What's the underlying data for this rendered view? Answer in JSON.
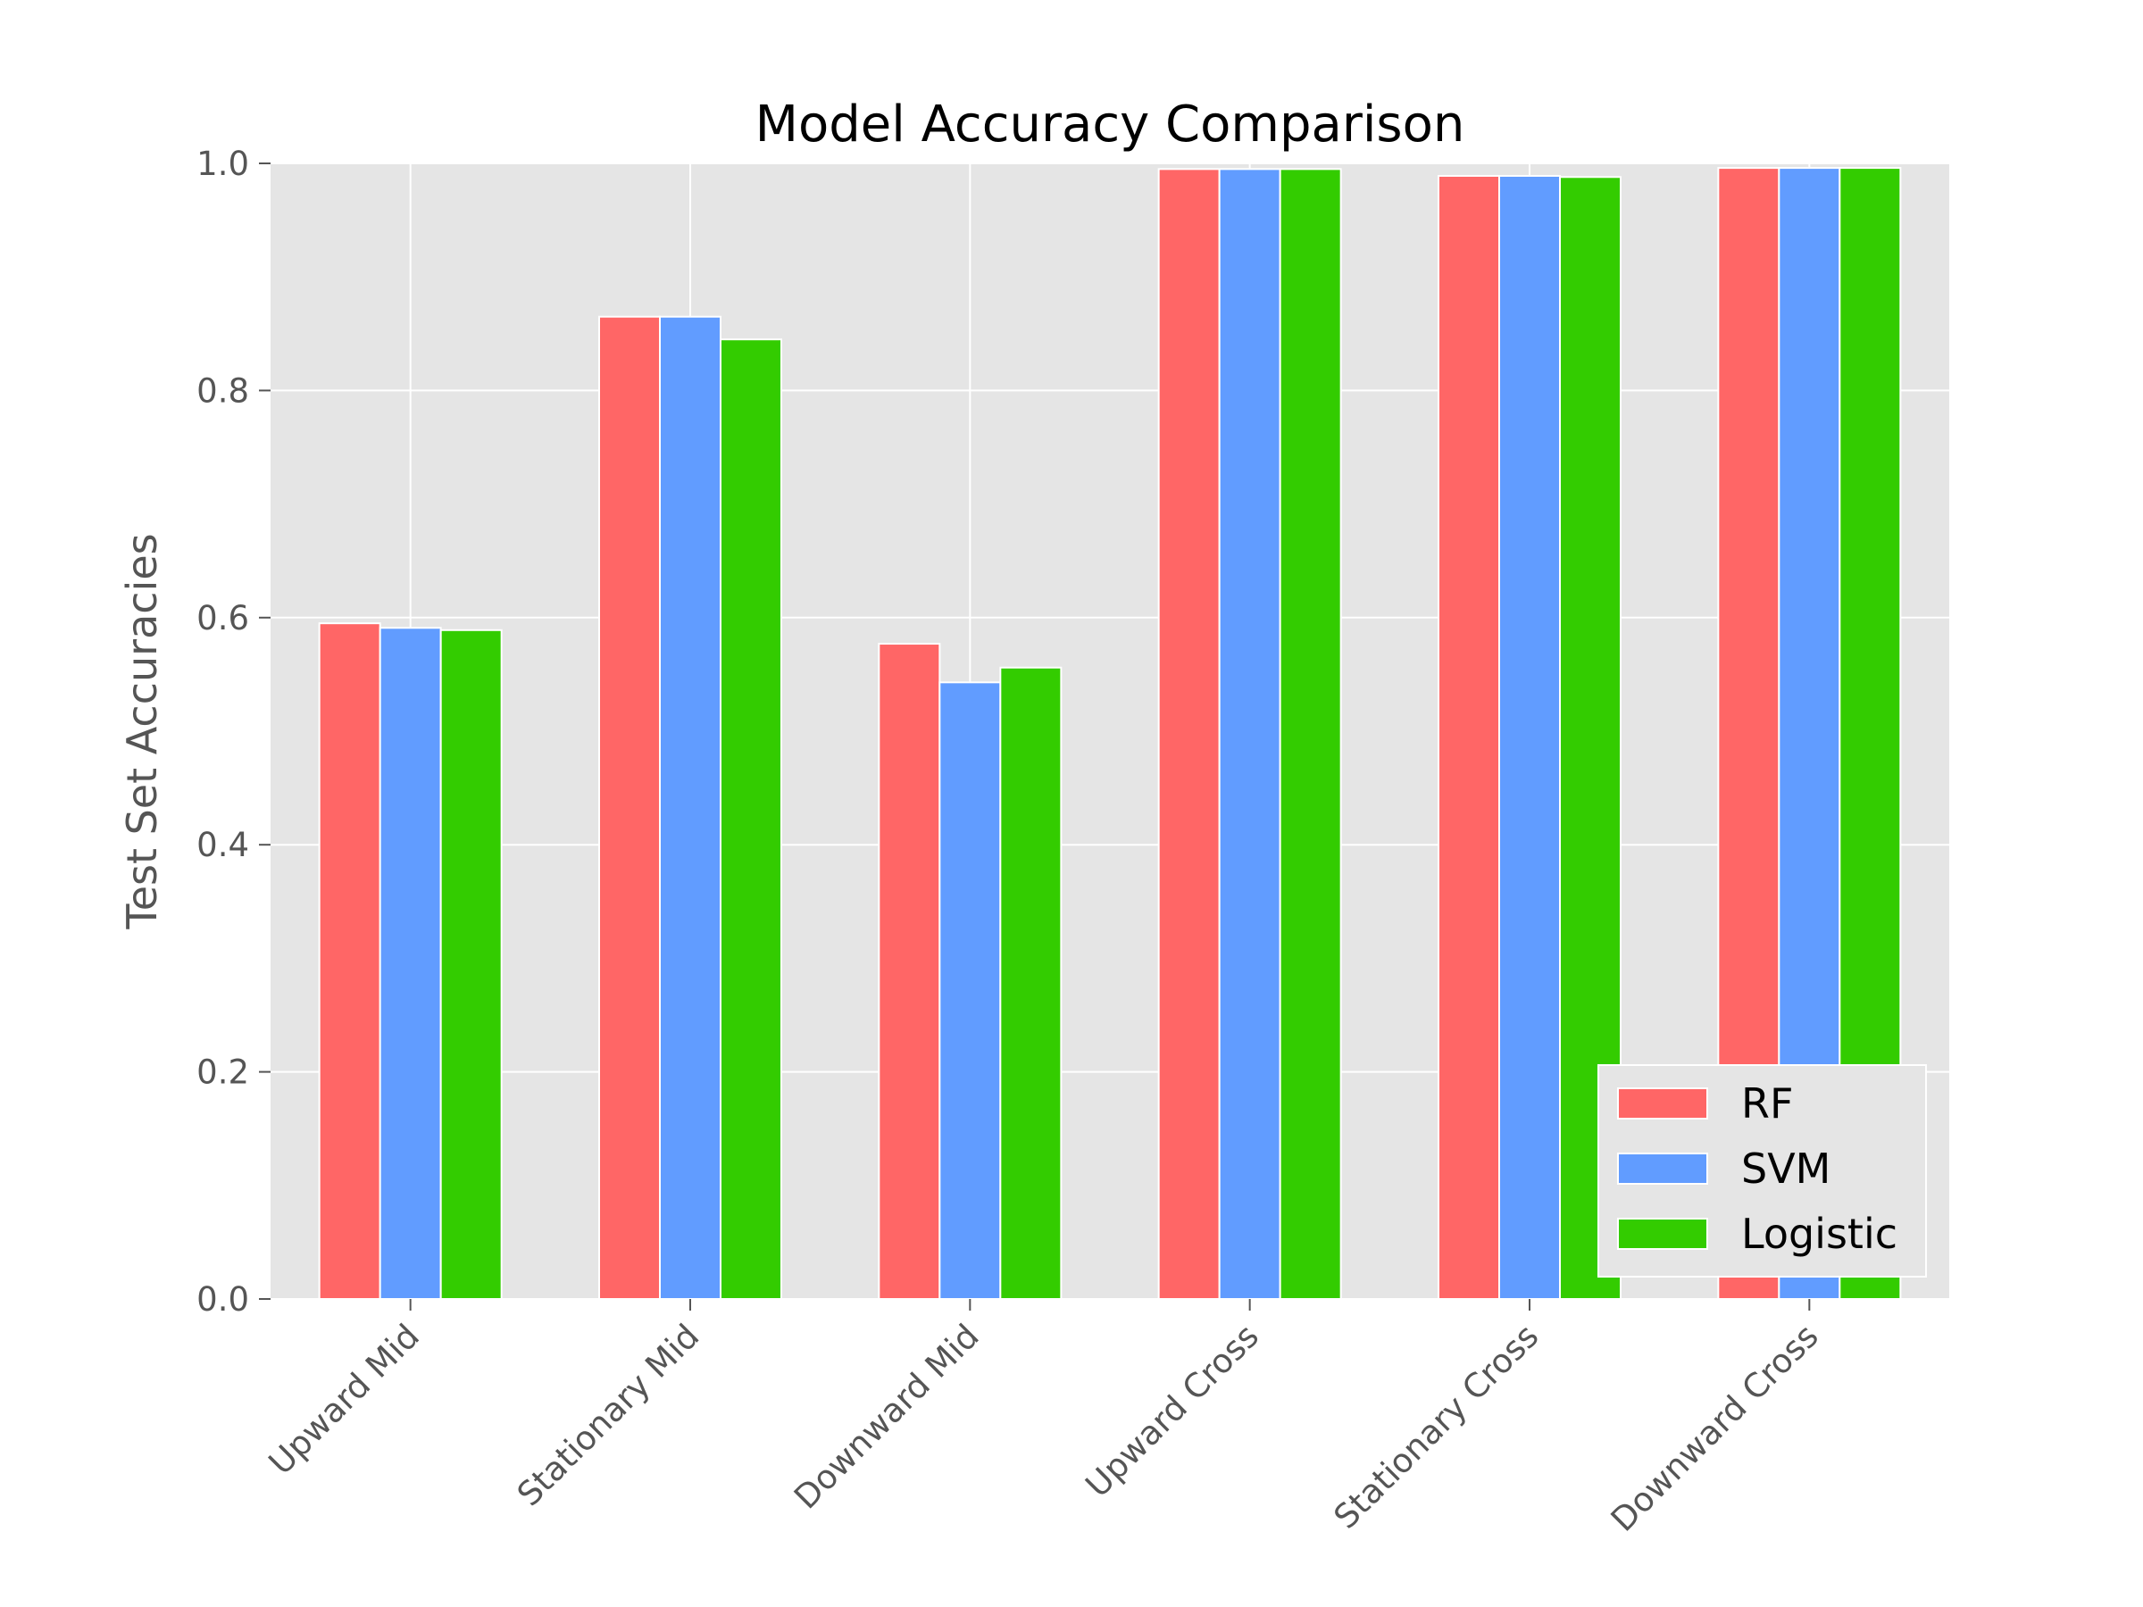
{
  "chart_data": {
    "type": "bar",
    "title": "Model Accuracy Comparison",
    "xlabel": "",
    "ylabel": "Test Set Accuracies",
    "ylim": [
      0.0,
      1.0
    ],
    "yticks": [
      "0.0",
      "0.2",
      "0.4",
      "0.6",
      "0.8",
      "1.0"
    ],
    "categories": [
      "Upward Mid",
      "Stationary Mid",
      "Downward Mid",
      "Upward Cross",
      "Stationary Cross",
      "Downward Cross"
    ],
    "series": [
      {
        "name": "RF",
        "color": "#ff6666",
        "values": [
          0.595,
          0.865,
          0.577,
          0.995,
          0.989,
          0.996
        ]
      },
      {
        "name": "SVM",
        "color": "#619cff",
        "values": [
          0.591,
          0.865,
          0.543,
          0.995,
          0.989,
          0.996
        ]
      },
      {
        "name": "Logistic",
        "color": "#33cc00",
        "values": [
          0.589,
          0.845,
          0.556,
          0.995,
          0.988,
          0.996
        ]
      }
    ],
    "grid": true,
    "legend_position": "lower-right",
    "background_color": "#e5e5e5"
  }
}
